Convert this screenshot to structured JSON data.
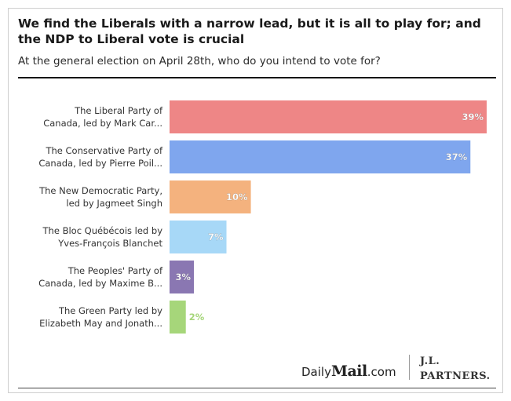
{
  "header": {
    "title": "We find the Liberals with a narrow lead, but it is all to play for; and the NDP to Liberal vote is crucial",
    "subtitle": "At the general election on April 28th, who do you intend to vote for?"
  },
  "chart_data": {
    "type": "bar",
    "orientation": "horizontal",
    "title": "We find the Liberals with a narrow lead, but it is all to play for; and the NDP to Liberal vote is crucial",
    "subtitle": "At the general election on April 28th, who do you intend to vote for?",
    "categories": [
      [
        "The Liberal Party of",
        "Canada, led by Mark Car..."
      ],
      [
        "The Conservative Party of",
        "Canada, led by Pierre Poil..."
      ],
      [
        "The New Democratic Party,",
        "led by Jagmeet Singh"
      ],
      [
        "The Bloc Québécois led by",
        "Yves-François Blanchet"
      ],
      [
        "The Peoples' Party of",
        "Canada, led by Maxime B..."
      ],
      [
        "The Green Party led by",
        "Elizabeth May and Jonath..."
      ]
    ],
    "values": [
      39,
      37,
      10,
      7,
      3,
      2
    ],
    "value_labels": [
      "39%",
      "37%",
      "10%",
      "7%",
      "3%",
      "2%"
    ],
    "colors": [
      "#ee8686",
      "#7fa6ee",
      "#f4b27e",
      "#a7d8f7",
      "#8a77b2",
      "#a6d67a"
    ],
    "xlim": [
      0,
      39
    ],
    "grid": false,
    "legend": "none"
  },
  "logos": {
    "daily": "Daily",
    "mail": "Mail",
    "com": ".com",
    "jl": "J.L.",
    "partners": "PARTNERS."
  }
}
